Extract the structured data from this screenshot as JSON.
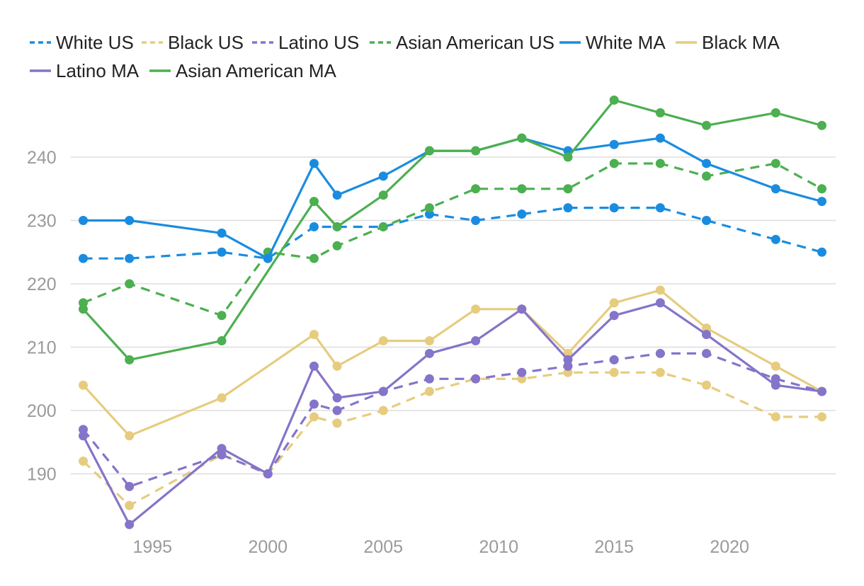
{
  "chart_data": {
    "type": "line",
    "title": "",
    "xlabel": "",
    "ylabel": "",
    "x": [
      1992,
      1994,
      1998,
      2000,
      2002,
      2003,
      2005,
      2007,
      2009,
      2011,
      2013,
      2015,
      2017,
      2019,
      2022,
      2024
    ],
    "xlim": [
      1991,
      2025
    ],
    "ylim": [
      180,
      251
    ],
    "x_ticks": [
      1995,
      2000,
      2005,
      2010,
      2015,
      2020
    ],
    "y_ticks": [
      190,
      200,
      210,
      220,
      230,
      240
    ],
    "legend_position": "top-left",
    "grid": "horizontal",
    "series": [
      {
        "name": "White US",
        "style": "dashed",
        "color": "#1a8ce0",
        "values": [
          224,
          224,
          225,
          224,
          229,
          229,
          229,
          231,
          230,
          231,
          232,
          232,
          232,
          230,
          227,
          225
        ]
      },
      {
        "name": "Black US",
        "style": "dashed",
        "color": "#e6cc7e",
        "values": [
          192,
          185,
          193,
          190,
          199,
          198,
          200,
          203,
          205,
          205,
          206,
          206,
          206,
          204,
          199,
          199
        ]
      },
      {
        "name": "Latino US",
        "style": "dashed",
        "color": "#8574c9",
        "values": [
          197,
          188,
          193,
          190,
          201,
          200,
          203,
          205,
          205,
          206,
          207,
          208,
          209,
          209,
          205,
          203
        ]
      },
      {
        "name": "Asian American US",
        "style": "dashed",
        "color": "#4caf50",
        "values": [
          217,
          220,
          215,
          225,
          224,
          226,
          229,
          232,
          235,
          235,
          235,
          239,
          239,
          237,
          239,
          235
        ]
      },
      {
        "name": "White MA",
        "style": "solid",
        "color": "#1a8ce0",
        "values": [
          230,
          230,
          228,
          224,
          239,
          234,
          237,
          241,
          241,
          243,
          241,
          242,
          243,
          239,
          235,
          233
        ]
      },
      {
        "name": "Black MA",
        "style": "solid",
        "color": "#e6cc7e",
        "values": [
          204,
          196,
          202,
          null,
          212,
          207,
          211,
          211,
          216,
          216,
          209,
          217,
          219,
          213,
          207,
          203
        ]
      },
      {
        "name": "Latino MA",
        "style": "solid",
        "color": "#8574c9",
        "values": [
          196,
          182,
          194,
          190,
          207,
          202,
          203,
          209,
          211,
          216,
          208,
          215,
          217,
          212,
          204,
          203
        ]
      },
      {
        "name": "Asian American MA",
        "style": "solid",
        "color": "#4caf50",
        "values": [
          216,
          208,
          211,
          null,
          233,
          229,
          234,
          241,
          241,
          243,
          240,
          249,
          247,
          245,
          247,
          245
        ]
      }
    ]
  }
}
